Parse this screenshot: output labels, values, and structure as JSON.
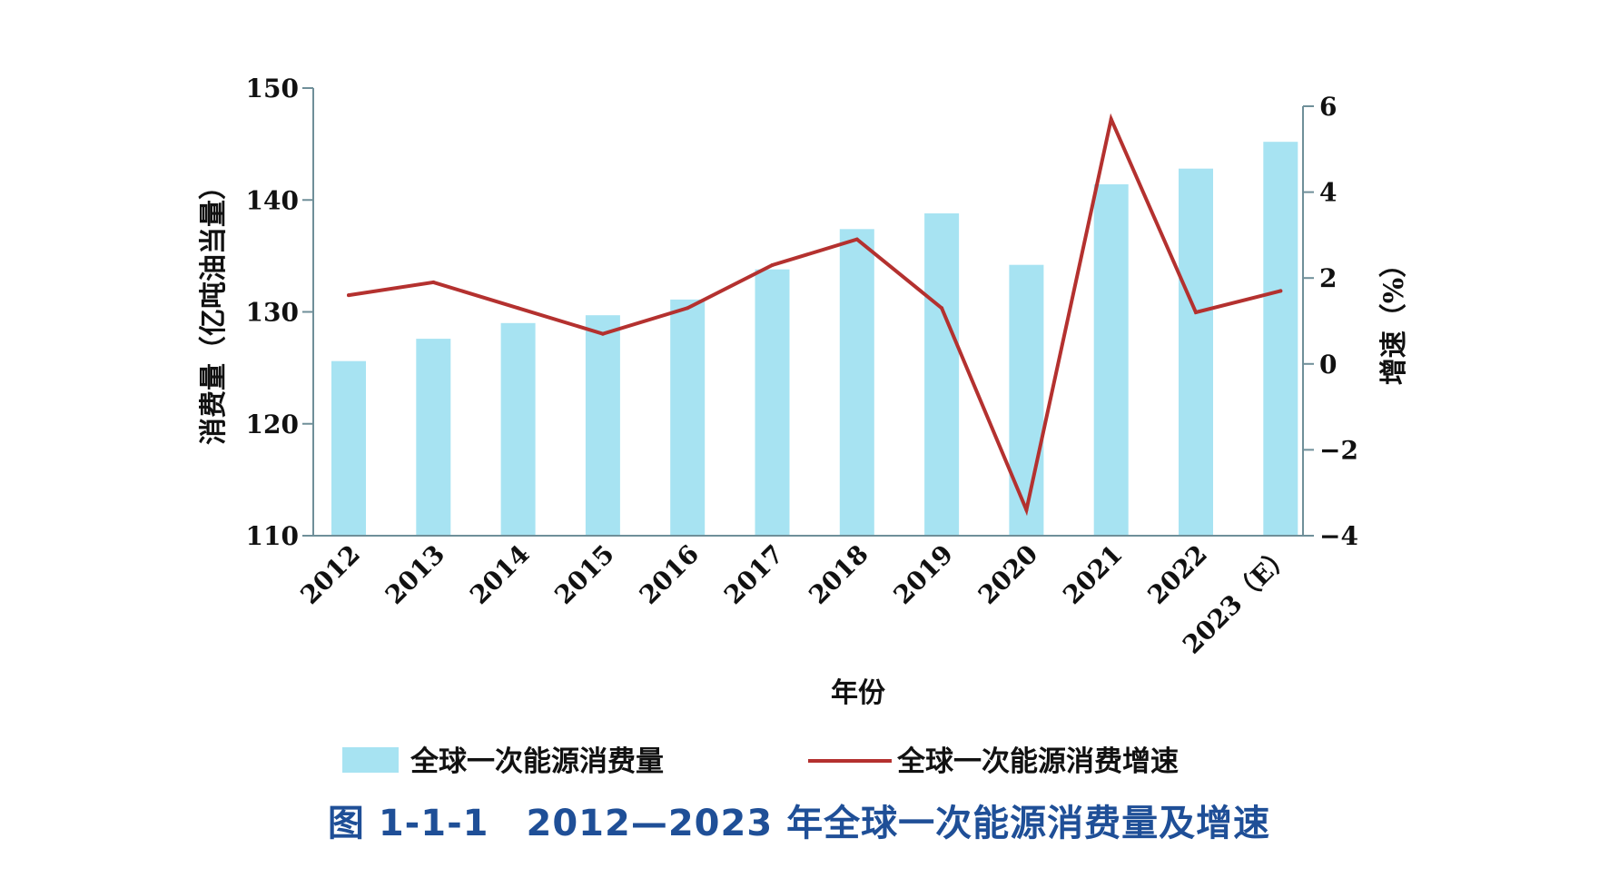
{
  "chart_data": {
    "type": "bar+line",
    "categories": [
      "2012",
      "2013",
      "2014",
      "2015",
      "2016",
      "2017",
      "2018",
      "2019",
      "2020",
      "2021",
      "2022",
      "2023（E）"
    ],
    "series": [
      {
        "name": "全球一次能源消费量",
        "type": "bar",
        "axis": "left",
        "values": [
          125.6,
          127.6,
          129.0,
          129.7,
          131.1,
          133.8,
          137.4,
          138.8,
          134.2,
          141.4,
          142.8,
          145.2
        ]
      },
      {
        "name": "全球一次能源消费增速",
        "type": "line",
        "axis": "right",
        "values": [
          1.6,
          1.9,
          1.3,
          0.7,
          1.3,
          2.3,
          2.9,
          1.3,
          -3.4,
          5.7,
          1.2,
          1.7
        ]
      }
    ],
    "xlabel": "年份",
    "ylabel_left": "消费量（亿吨油当量）",
    "ylabel_right": "增速（%）",
    "ylim_left": [
      110,
      150
    ],
    "yticks_left": [
      110,
      120,
      130,
      140,
      150
    ],
    "ylim_right": [
      -4,
      6
    ],
    "yticks_right": [
      -4,
      -2,
      0,
      2,
      4,
      6
    ],
    "legend_position": "bottom",
    "grid": false,
    "caption": "图 1-1-1　2012—2023 年全球一次能源消费量及增速",
    "colors": {
      "bar": "#a7e3f2",
      "line": "#b4312f",
      "caption": "#1f4f97"
    }
  }
}
